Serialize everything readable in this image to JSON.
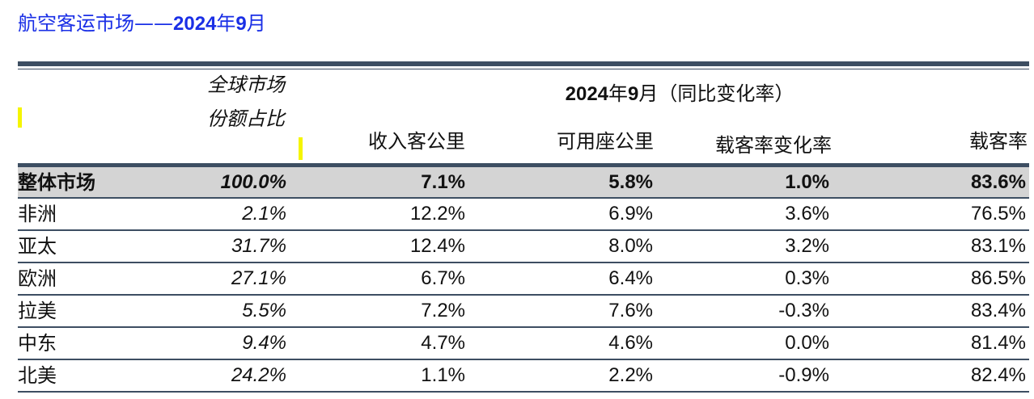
{
  "title": {
    "prefix": "航空客运市场——",
    "year": "2024",
    "nian": "年",
    "month": "9",
    "yue": "月"
  },
  "header": {
    "share_line1": "全球市场",
    "share_line2": "份额占比",
    "group_year": "2024",
    "group_nian": "年",
    "group_month": "9",
    "group_rest": "月（同比变化率）",
    "rpk": "收入客公里",
    "ask": "可用座公里",
    "plf_change": "载客率变化率",
    "plf": "载客率"
  },
  "highlight_color": "#f5f500",
  "title_color": "#1a2fe6",
  "rows": [
    {
      "name": "整体市场",
      "share": "100.0%",
      "rpk": "7.1%",
      "ask": "5.8%",
      "plf_change": "1.0%",
      "plf": "83.6%"
    },
    {
      "name": "非洲",
      "share": "2.1%",
      "rpk": "12.2%",
      "ask": "6.9%",
      "plf_change": "3.6%",
      "plf": "76.5%"
    },
    {
      "name": "亚太",
      "share": "31.7%",
      "rpk": "12.4%",
      "ask": "8.0%",
      "plf_change": "3.2%",
      "plf": "83.1%"
    },
    {
      "name": "欧洲",
      "share": "27.1%",
      "rpk": "6.7%",
      "ask": "6.4%",
      "plf_change": "0.3%",
      "plf": "86.5%"
    },
    {
      "name": "拉美",
      "share": "5.5%",
      "rpk": "7.2%",
      "ask": "7.6%",
      "plf_change": "-0.3%",
      "plf": "83.4%"
    },
    {
      "name": "中东",
      "share": "9.4%",
      "rpk": "4.7%",
      "ask": "4.6%",
      "plf_change": "0.0%",
      "plf": "81.4%"
    },
    {
      "name": "北美",
      "share": "24.2%",
      "rpk": "1.1%",
      "ask": "2.2%",
      "plf_change": "-0.9%",
      "plf": "82.4%"
    }
  ]
}
